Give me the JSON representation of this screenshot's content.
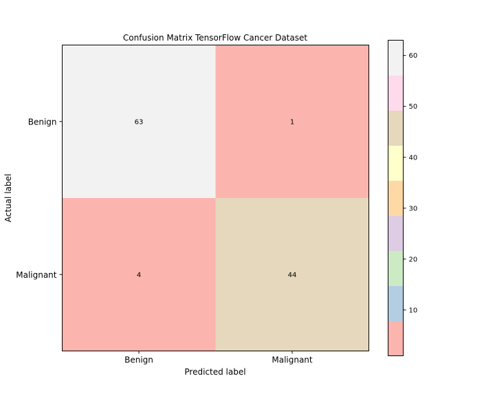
{
  "chart_data": {
    "type": "heatmap",
    "title": "Confusion Matrix TensorFlow Cancer Dataset",
    "xlabel": "Predicted label",
    "ylabel": "Actual label",
    "x_categories": [
      "Benign",
      "Malignant"
    ],
    "y_categories": [
      "Benign",
      "Malignant"
    ],
    "values": [
      [
        63,
        1
      ],
      [
        4,
        44
      ]
    ],
    "colormap": "Pastel1",
    "colorbar": {
      "range": [
        1,
        63
      ],
      "ticks": [
        10,
        20,
        30,
        40,
        50,
        60
      ],
      "colors": [
        "#fbb4ae",
        "#b3cde3",
        "#ccebc5",
        "#decbe4",
        "#fed9a6",
        "#ffffcc",
        "#e5d8bd",
        "#fddaec",
        "#f2f2f2"
      ]
    },
    "grid": false
  }
}
